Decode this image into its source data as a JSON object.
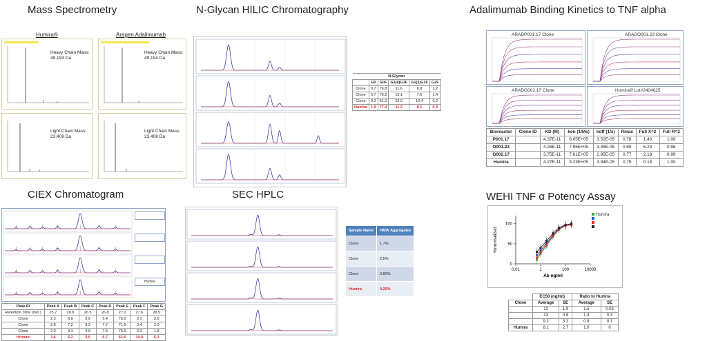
{
  "titles": {
    "mass_spec": "Mass Spectrometry",
    "hilic": "N-Glycan HILIC Chromatography",
    "binding": "Adalimumab Binding Kinetics to TNF alpha",
    "ciex": "CIEX Chromatogram",
    "sec": "SEC HPLC",
    "wehi": "WEHI TNF α Potency Assay"
  },
  "mass_spec": {
    "humira_head": "Humira®",
    "aragen_head": "Aragen Adalimumab",
    "panels": [
      {
        "label_line1": "Heavy Chain Mass:",
        "label_line2": "49,193 Da"
      },
      {
        "label_line1": "Heavy Chain Mass:",
        "label_line2": "49,194 Da"
      },
      {
        "label_line1": "Light Chain Mass:",
        "label_line2": "23,409 Da"
      },
      {
        "label_line1": "Light Chain Mass:",
        "label_line2": "23,408 Da"
      }
    ]
  },
  "nglycan_table": {
    "group_header": "N-Glycan",
    "columns": [
      "",
      "G0",
      "G0F",
      "G1(6)G1F",
      "G1(3)G1F",
      "G2F"
    ],
    "rows": [
      {
        "cells": [
          "Clone",
          "0.7",
          "76.8",
          "11.6",
          "6.8",
          "1.2"
        ],
        "highlight": false
      },
      {
        "cells": [
          "Clone",
          "0.7",
          "78.2",
          "12.1",
          "7.6",
          "1.4"
        ],
        "highlight": false
      },
      {
        "cells": [
          "Clone",
          "0.3",
          "51.3",
          "23.0",
          "16.4",
          "6.2"
        ],
        "highlight": false
      },
      {
        "cells": [
          "Humira",
          "1.9",
          "77.4",
          "11.2",
          "8.1",
          "0.9"
        ],
        "highlight": true
      }
    ]
  },
  "binding": {
    "panel_titles": [
      "ARADP001.17 Clone",
      "ARADO001.23 Clone",
      "ARADG002.17 Clone",
      "Humira® Lot#2404625"
    ],
    "table": {
      "columns": [
        "Bioreactor",
        "Clone ID",
        "KD (M)",
        "kon (1/Ms)",
        "koff (1/s)",
        "Rmax",
        "Full  X^2",
        "Full  R^2"
      ],
      "rows": [
        [
          "P001.17",
          "",
          "4.37E-11",
          "8.05E+05",
          "3.52E-05",
          "0.78",
          "1.43",
          "1.00"
        ],
        [
          "O001.23",
          "",
          "4.26E-11",
          "7.96E+05",
          "3.39E-05",
          "0.69",
          "6.23",
          "0.98"
        ],
        [
          "G002.17",
          "",
          "3.75E-11",
          "7.61E+05",
          "2.85E-05",
          "0.77",
          "2.18",
          "0.99"
        ],
        [
          "Humira",
          "",
          "4.27E-11",
          "9.23E+05",
          "3.94E-05",
          "0.75",
          "0.18",
          "1.00"
        ]
      ]
    }
  },
  "ciex_table": {
    "columns": [
      "Peak ID",
      "Peak A",
      "Peak B",
      "Peak C",
      "Peak D",
      "Peak E",
      "Peak F",
      "Peak G"
    ],
    "rows": [
      {
        "cells": [
          "Retention Time (min.)",
          "25.7",
          "26.8",
          "26.5",
          "26.8",
          "27.0",
          "27.6",
          "28.5"
        ],
        "highlight": false
      },
      {
        "cells": [
          "Clone",
          "2.3",
          "6.9",
          "3.9",
          "5.4",
          "75.0",
          "3.1",
          "3.5"
        ],
        "highlight": false
      },
      {
        "cells": [
          "Clone",
          "2.8",
          "7.2",
          "3.2",
          "7.7",
          "71.6",
          "3.4",
          "2.0"
        ],
        "highlight": false
      },
      {
        "cells": [
          "Clone",
          "2.0",
          "3.1",
          "4.9",
          "7.5",
          "75.5",
          "3.3",
          "1.8"
        ],
        "highlight": false
      },
      {
        "cells": [
          "Humira",
          "3.6",
          "6.2",
          "3.6",
          "6.7",
          "62.6",
          "19.0",
          "5.3"
        ],
        "highlight": true
      }
    ],
    "inset_label": "Humira"
  },
  "sec_table": {
    "columns": [
      "Sample Name",
      "HMW Aggregates"
    ],
    "rows": [
      {
        "cells": [
          "Clone",
          "1.7%"
        ],
        "highlight": false
      },
      {
        "cells": [
          "Clone",
          "2.5%"
        ],
        "highlight": false
      },
      {
        "cells": [
          "Clone",
          "0.80%"
        ],
        "highlight": false
      },
      {
        "cells": [
          "Humira",
          "0.20%"
        ],
        "highlight": true
      }
    ]
  },
  "wehi": {
    "legend": [
      "Humira",
      "",
      "",
      ""
    ],
    "legend_colors": [
      "#3cb043",
      "#2a5cc8",
      "#e03030",
      "#222222"
    ],
    "ylabel": "%normalized",
    "xlabel": "Ab ng/ml",
    "yticks": [
      "100",
      "50",
      "0"
    ],
    "xticks": [
      "0.01",
      "1",
      "100",
      "10000"
    ],
    "table": {
      "group_ec50": "EC50 (ng/ml)",
      "group_ratio": "Ratio to Humira",
      "subcols": [
        "Clone",
        "Average",
        "SE",
        "Average",
        "SE"
      ],
      "rows": [
        [
          "",
          "12",
          "1.9",
          "1.5",
          "0.03"
        ],
        [
          "",
          "13",
          "0.8",
          "1.4",
          "0.3"
        ],
        [
          "",
          "9.2",
          "3.3",
          "0.9",
          "0.1"
        ],
        [
          "Humira",
          "8.1",
          "2.7",
          "1.0",
          "0"
        ]
      ]
    }
  },
  "chart_data": [
    {
      "type": "line",
      "title": "WEHI TNF α Potency Assay",
      "xlabel": "Ab ng/ml",
      "ylabel": "%normalized",
      "xscale": "log",
      "xlim": [
        0.01,
        10000
      ],
      "ylim": [
        0,
        120
      ],
      "series": [
        {
          "name": "Humira",
          "x": [
            0.5,
            1,
            3,
            10,
            30,
            100,
            300
          ],
          "y": [
            10,
            25,
            45,
            68,
            85,
            95,
            98
          ]
        },
        {
          "name": "",
          "x": [
            0.5,
            1,
            3,
            10,
            30,
            100,
            300
          ],
          "y": [
            22,
            33,
            52,
            72,
            88,
            96,
            99
          ]
        },
        {
          "name": "",
          "x": [
            0.5,
            1,
            3,
            10,
            30,
            100,
            300
          ],
          "y": [
            15,
            28,
            48,
            70,
            86,
            95,
            97
          ]
        },
        {
          "name": "",
          "x": [
            0.5,
            1,
            3,
            10,
            30,
            100,
            300
          ],
          "y": [
            30,
            40,
            57,
            76,
            90,
            97,
            100
          ]
        }
      ]
    }
  ]
}
